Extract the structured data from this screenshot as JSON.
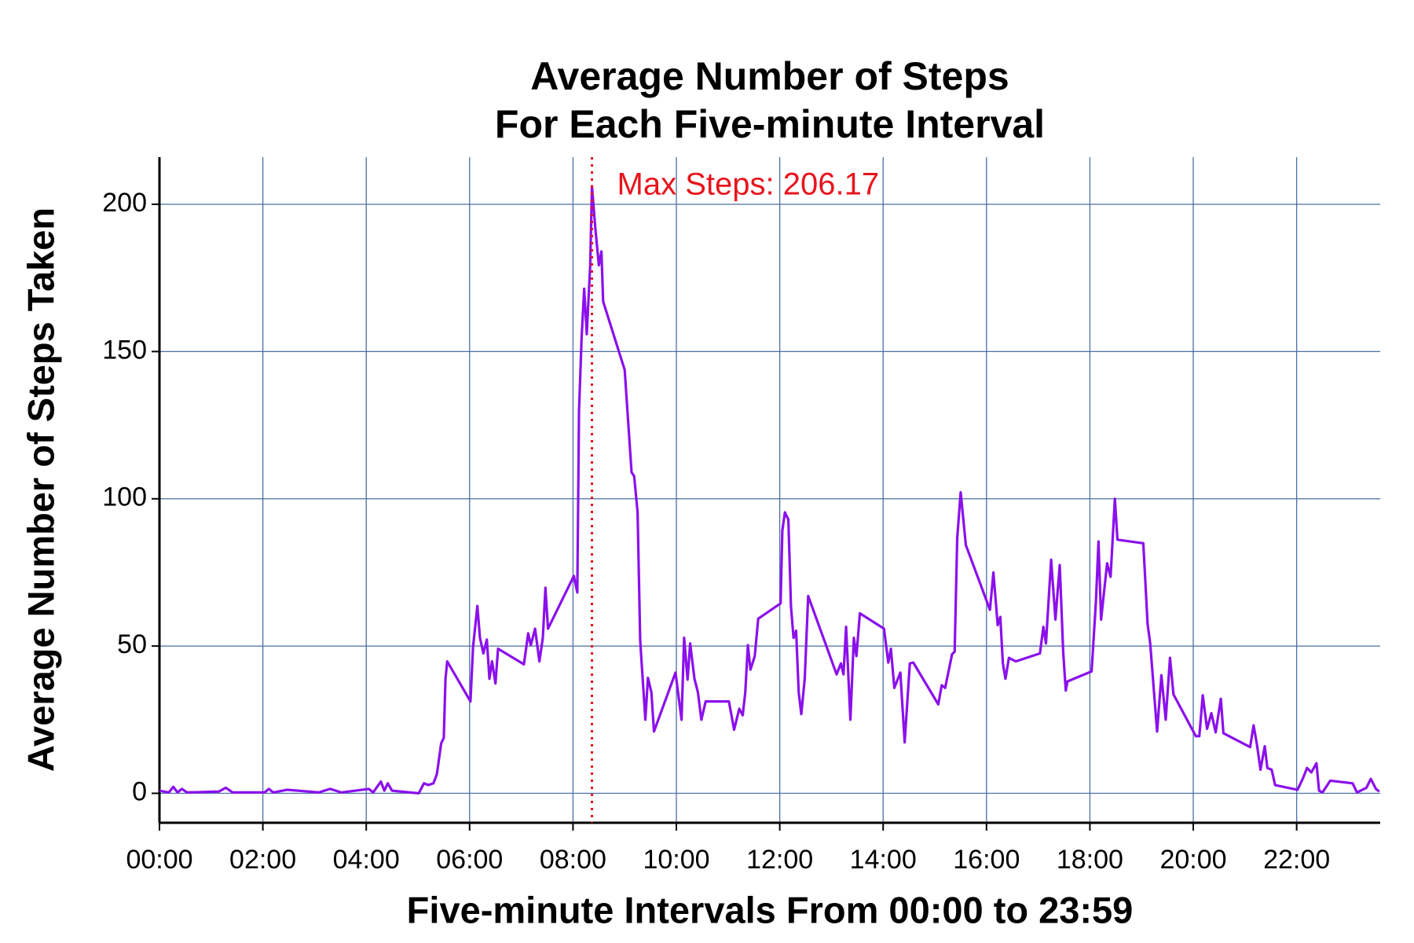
{
  "chart_data": {
    "type": "line",
    "title": [
      "Average Number of Steps",
      "For Each Five-minute Interval"
    ],
    "x_label": "Five-minute Intervals From 00:00 to 23:59",
    "y_label": "Average Number of Steps Taken",
    "xlim": [
      0,
      1417
    ],
    "ylim": [
      -10,
      216
    ],
    "xticks": [
      {
        "value": 0,
        "label": "00:00"
      },
      {
        "value": 120,
        "label": "02:00"
      },
      {
        "value": 240,
        "label": "04:00"
      },
      {
        "value": 360,
        "label": "06:00"
      },
      {
        "value": 480,
        "label": "08:00"
      },
      {
        "value": 600,
        "label": "10:00"
      },
      {
        "value": 720,
        "label": "12:00"
      },
      {
        "value": 840,
        "label": "14:00"
      },
      {
        "value": 960,
        "label": "16:00"
      },
      {
        "value": 1080,
        "label": "18:00"
      },
      {
        "value": 1200,
        "label": "20:00"
      },
      {
        "value": 1320,
        "label": "22:00"
      }
    ],
    "yticks": [
      0,
      50,
      100,
      150,
      200
    ],
    "grid": true,
    "annotation": {
      "text": "Max Steps: 206.17",
      "x": 502,
      "y": 206.17,
      "color": "#e8141c"
    },
    "x": [
      0,
      11,
      16,
      21,
      26,
      32,
      69,
      77,
      85,
      122,
      127,
      132,
      148,
      185,
      198,
      211,
      243,
      248,
      257,
      261,
      265,
      270,
      301,
      307,
      312,
      318,
      322,
      327,
      330,
      332,
      334,
      361,
      364,
      369,
      372,
      376,
      380,
      383,
      386,
      390,
      393,
      423,
      428,
      431,
      436,
      441,
      445,
      448,
      451,
      481,
      485,
      487,
      490,
      493,
      496,
      500,
      502,
      506,
      510,
      513,
      515,
      540,
      548,
      551,
      555,
      558,
      564,
      567,
      571,
      574,
      599,
      606,
      609,
      613,
      616,
      621,
      625,
      629,
      634,
      661,
      667,
      673,
      677,
      680,
      683,
      686,
      691,
      695,
      721,
      723,
      726,
      730,
      733,
      736,
      739,
      742,
      745,
      749,
      753,
      786,
      791,
      794,
      797,
      802,
      806,
      809,
      813,
      841,
      846,
      849,
      853,
      860,
      865,
      871,
      875,
      904,
      908,
      912,
      920,
      923,
      926,
      930,
      936,
      964,
      968,
      973,
      976,
      979,
      982,
      986,
      994,
      1022,
      1026,
      1029,
      1035,
      1040,
      1045,
      1049,
      1052,
      1054,
      1082,
      1087,
      1090,
      1093,
      1100,
      1104,
      1109,
      1112,
      1142,
      1147,
      1150,
      1158,
      1163,
      1168,
      1173,
      1177,
      1203,
      1207,
      1211,
      1216,
      1221,
      1226,
      1232,
      1235,
      1266,
      1270,
      1274,
      1278,
      1283,
      1286,
      1291,
      1295,
      1321,
      1327,
      1332,
      1337,
      1343,
      1346,
      1350,
      1359,
      1385,
      1390,
      1401,
      1406,
      1412,
      1416
    ],
    "series": [
      {
        "name": "steps",
        "color": "#8b10ec",
        "values": [
          0.9,
          0.3,
          2.2,
          0.3,
          1.5,
          0.3,
          0.6,
          1.9,
          0.3,
          0.3,
          1.5,
          0.3,
          1.2,
          0.3,
          1.5,
          0.3,
          1.5,
          0.3,
          4.0,
          0.9,
          3.4,
          0.9,
          0,
          3.4,
          2.8,
          3.4,
          6.5,
          17.0,
          18.8,
          38.9,
          44.8,
          31.2,
          49.7,
          63.6,
          52.8,
          47.5,
          52.2,
          38.9,
          44.8,
          37.3,
          49.1,
          43.8,
          54.3,
          50.3,
          55.9,
          44.8,
          52.8,
          69.8,
          55.9,
          73.8,
          68.2,
          129.9,
          154.6,
          171.3,
          155.9,
          179.3,
          206.17,
          191.7,
          179.3,
          184.0,
          167.0,
          143.8,
          109.0,
          107.7,
          95.4,
          51.9,
          25.0,
          39.2,
          34.3,
          21.0,
          41.0,
          25.0,
          52.8,
          38.6,
          50.9,
          38.9,
          34.3,
          25.0,
          31.2,
          31.2,
          21.6,
          28.7,
          26.5,
          34.3,
          50.3,
          42.0,
          46.6,
          59.3,
          64.5,
          89.2,
          95.4,
          92.9,
          63.6,
          52.8,
          55.2,
          34.3,
          26.9,
          38.9,
          67.0,
          40.4,
          44.1,
          40.4,
          56.5,
          25.0,
          52.8,
          46.6,
          61.1,
          55.9,
          44.4,
          49.1,
          35.8,
          41.0,
          17.3,
          44.1,
          44.4,
          30.2,
          36.7,
          35.8,
          47.2,
          48.1,
          86.7,
          102.2,
          84.3,
          62.3,
          75.0,
          57.1,
          59.9,
          44.1,
          38.9,
          46.0,
          44.8,
          47.5,
          56.5,
          50.9,
          79.3,
          59.0,
          77.5,
          48.1,
          34.9,
          38.0,
          41.4,
          65.1,
          85.5,
          59.0,
          78.1,
          73.5,
          100.0,
          86.1,
          84.9,
          57.4,
          50.9,
          21.0,
          40.1,
          25.0,
          46.0,
          33.6,
          19.4,
          19.4,
          33.3,
          21.9,
          27.2,
          20.7,
          32.1,
          20.4,
          15.7,
          23.1,
          16.4,
          8.0,
          16.0,
          8.6,
          8.0,
          2.8,
          1.2,
          4.9,
          8.6,
          7.1,
          10.2,
          0.9,
          0.3,
          4.3,
          3.4,
          0.3,
          1.9,
          4.9,
          1.5,
          0.6
        ]
      }
    ]
  }
}
